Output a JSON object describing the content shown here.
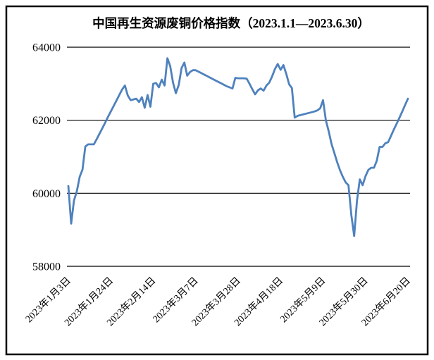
{
  "chart_data": {
    "type": "line",
    "title": "中国再生资源废铜价格指数（2023.1.1—2023.6.30）",
    "x_tick_labels": [
      "2023年1月3日",
      "2023年1月24日",
      "2023年2月14日",
      "2023年3月7日",
      "2023年3月28日",
      "2023年4月18日",
      "2023年5月9日",
      "2023年5月30日",
      "2023年6月20日"
    ],
    "label_interval": 15,
    "values": [
      60200,
      59170,
      59800,
      60050,
      60450,
      60650,
      61280,
      61340,
      61340,
      61340,
      61480,
      61630,
      61780,
      61930,
      62090,
      62240,
      62390,
      62540,
      62690,
      62840,
      62950,
      62680,
      62550,
      62570,
      62590,
      62500,
      62630,
      62340,
      62690,
      62370,
      63000,
      63020,
      62900,
      63110,
      62950,
      63700,
      63480,
      63030,
      62740,
      62965,
      63430,
      63580,
      63220,
      63320,
      63370,
      63370,
      63330,
      63290,
      63250,
      63210,
      63170,
      63130,
      63090,
      63050,
      63010,
      62970,
      62930,
      62900,
      62870,
      63160,
      63150,
      63150,
      63150,
      63140,
      63000,
      62850,
      62710,
      62820,
      62870,
      62810,
      62950,
      63030,
      63200,
      63400,
      63540,
      63380,
      63510,
      63270,
      62990,
      62880,
      62070,
      62120,
      62140,
      62160,
      62180,
      62200,
      62220,
      62240,
      62270,
      62330,
      62550,
      62000,
      61700,
      61350,
      61100,
      60850,
      60630,
      60450,
      60300,
      60220,
      59400,
      58830,
      59800,
      60380,
      60220,
      60470,
      60640,
      60700,
      60700,
      60890,
      61270,
      61270,
      61370,
      61400,
      61570,
      61740,
      61900,
      62070,
      62240,
      62420,
      62590
    ],
    "ylim": [
      58000,
      64000
    ],
    "yticks": [
      64000,
      62000,
      60000,
      58000
    ],
    "xlabel": "",
    "ylabel": "",
    "grid": "horizontal",
    "legend": "none",
    "line_color": "#4F81BD",
    "grid_color": "#000000",
    "frame_color": "#000000",
    "background_color": "#FFFFFF"
  }
}
